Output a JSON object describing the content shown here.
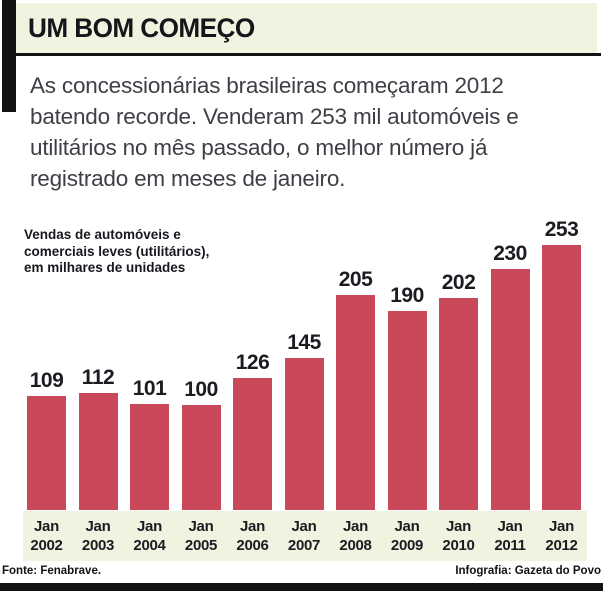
{
  "header": {
    "title": "UM BOM COMEÇO"
  },
  "intro": {
    "lines": [
      "As concessionárias brasileiras começaram 2012",
      "batendo recorde. Venderam 253 mil automóveis e",
      "utilitários no mês passado, o melhor número já",
      "registrado em meses de janeiro."
    ],
    "full_text": "As concessionárias brasileiras começaram 2012 batendo recorde. Venderam 253 mil automóveis e utilitários no mês passado, o melhor número já registrado em meses de janeiro."
  },
  "chart_note": {
    "lines": [
      "Vendas de automóveis e",
      "comerciais leves (utilitários),",
      "em milhares de unidades"
    ]
  },
  "chart_data": {
    "type": "bar",
    "title": "Vendas de automóveis e comerciais leves (utilitários), em milhares de unidades",
    "categories": [
      "Jan 2002",
      "Jan 2003",
      "Jan 2004",
      "Jan 2005",
      "Jan 2006",
      "Jan 2007",
      "Jan 2008",
      "Jan 2009",
      "Jan 2010",
      "Jan 2011",
      "Jan 2012"
    ],
    "values": [
      109,
      112,
      101,
      100,
      126,
      145,
      205,
      190,
      202,
      230,
      253
    ],
    "xlabel": "",
    "ylabel": "milhares de unidades",
    "ylim": [
      0,
      253
    ],
    "grid": false,
    "legend": false,
    "data_labels": true,
    "bar_color": "#c94859"
  },
  "footer": {
    "source": "Fonte: Fenabrave.",
    "credit": "Infografia: Gazeta do Povo"
  },
  "colors": {
    "bar_crimson": "#c94859",
    "band_beige": "#f1f2df",
    "ink_black": "#131313",
    "body_text": "#3e3e46"
  }
}
